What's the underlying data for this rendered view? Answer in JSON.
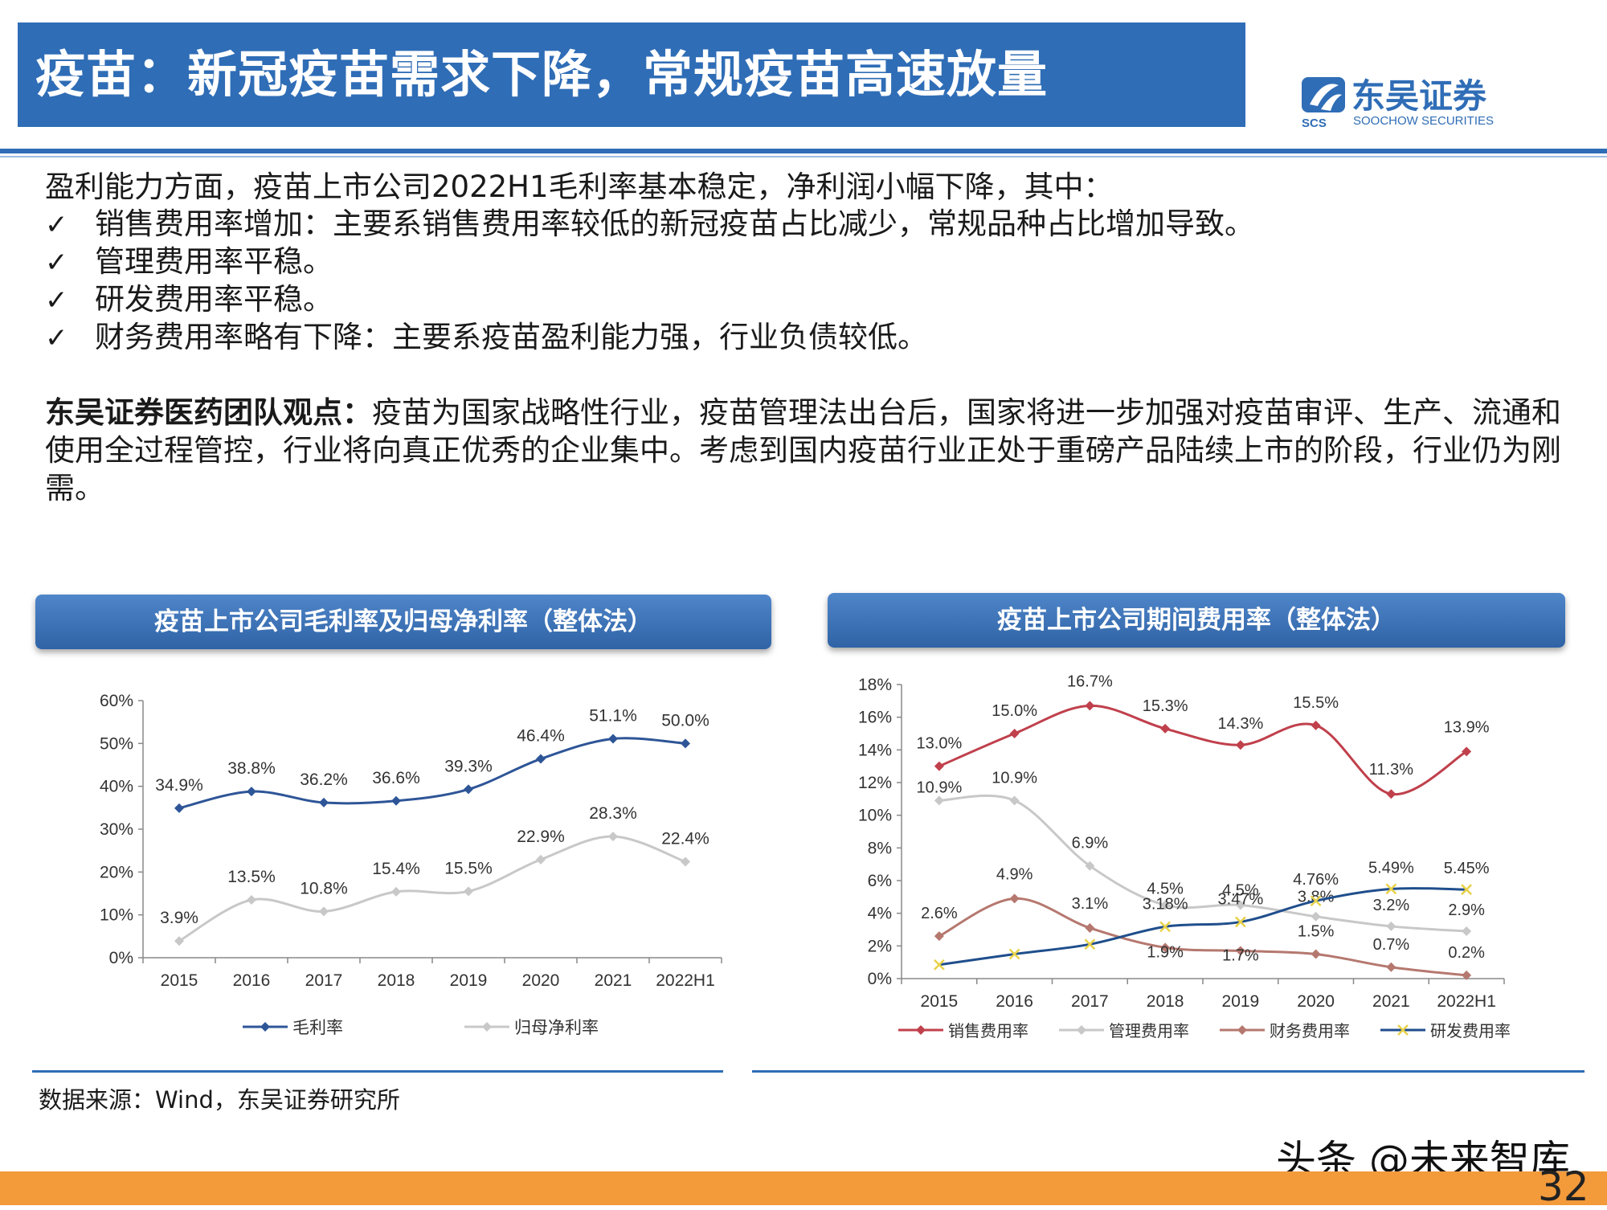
{
  "header": {
    "title": "疫苗：新冠疫苗需求下降，常规疫苗高速放量",
    "logo_cn": "东吴证券",
    "logo_en": "SOOCHOW SECURITIES",
    "logo_mark": "SCS"
  },
  "body": {
    "intro": "盈利能力方面，疫苗上市公司2022H1毛利率基本稳定，净利润小幅下降，其中：",
    "check": "✓",
    "bullets": [
      "销售费用率增加：主要系销售费用率较低的新冠疫苗占比减少，常规品种占比增加导致。",
      "管理费用率平稳。",
      "研发费用率平稳。",
      "财务费用率略有下降：主要系疫苗盈利能力强，行业负债较低。"
    ],
    "view_label": "东吴证券医药团队观点：",
    "view_text": "疫苗为国家战略性行业，疫苗管理法出台后，国家将进一步加强对疫苗审评、生产、流通和使用全过程管控，行业将向真正优秀的企业集中。考虑到国内疫苗行业正处于重磅产品陆续上市的阶段，行业仍为刚需。"
  },
  "chart_data": [
    {
      "type": "line",
      "title": "疫苗上市公司毛利率及归母净利率（整体法）",
      "categories": [
        "2015",
        "2016",
        "2017",
        "2018",
        "2019",
        "2020",
        "2021",
        "2022H1"
      ],
      "ylim": [
        0,
        60
      ],
      "yticks": [
        "0%",
        "10%",
        "20%",
        "30%",
        "40%",
        "50%",
        "60%"
      ],
      "legend_position": "bottom",
      "series": [
        {
          "name": "毛利率",
          "color": "#2e5597",
          "marker": "diamond",
          "values": [
            34.9,
            38.8,
            36.2,
            36.6,
            39.3,
            46.4,
            51.1,
            50.0
          ],
          "labels": [
            "34.9%",
            "38.8%",
            "36.2%",
            "36.6%",
            "39.3%",
            "46.4%",
            "51.1%",
            "50.0%"
          ]
        },
        {
          "name": "归母净利率",
          "color": "#c8c8c8",
          "marker": "diamond",
          "values": [
            3.9,
            13.5,
            10.8,
            15.4,
            15.5,
            22.9,
            28.3,
            22.4
          ],
          "labels": [
            "3.9%",
            "13.5%",
            "10.8%",
            "15.4%",
            "15.5%",
            "22.9%",
            "28.3%",
            "22.4%"
          ]
        }
      ]
    },
    {
      "type": "line",
      "title": "疫苗上市公司期间费用率（整体法）",
      "categories": [
        "2015",
        "2016",
        "2017",
        "2018",
        "2019",
        "2020",
        "2021",
        "2022H1"
      ],
      "ylim": [
        0,
        18
      ],
      "yticks": [
        "0%",
        "2%",
        "4%",
        "6%",
        "8%",
        "10%",
        "12%",
        "14%",
        "16%",
        "18%"
      ],
      "legend_position": "bottom",
      "series": [
        {
          "name": "销售费用率",
          "color": "#c0404c",
          "marker": "diamond",
          "values": [
            13.0,
            15.0,
            16.7,
            15.3,
            14.3,
            15.5,
            11.3,
            13.9
          ],
          "labels": [
            "13.0%",
            "15.0%",
            "16.7%",
            "15.3%",
            "14.3%",
            "15.5%",
            "11.3%",
            "13.9%"
          ]
        },
        {
          "name": "管理费用率",
          "color": "#c8c8c8",
          "marker": "diamond",
          "values": [
            10.9,
            10.9,
            6.9,
            4.5,
            4.5,
            3.8,
            3.2,
            2.9
          ],
          "labels": [
            "10.9%",
            "10.9%",
            "6.9%",
            "4.5%",
            "4.5%",
            "3.8%",
            "3.2%",
            "2.9%"
          ]
        },
        {
          "name": "财务费用率",
          "color": "#b5786f",
          "marker": "diamond",
          "values": [
            2.6,
            4.9,
            3.1,
            1.9,
            1.7,
            1.5,
            0.7,
            0.2
          ],
          "labels": [
            "2.6%",
            "4.9%",
            "3.1%",
            "1.9%",
            "1.7%",
            "1.5%",
            "0.7%",
            "0.2%"
          ]
        },
        {
          "name": "研发费用率",
          "color": "#1f4e8c",
          "marker": "x",
          "values": [
            0.85,
            1.5,
            2.1,
            3.18,
            3.47,
            4.76,
            5.49,
            5.45
          ],
          "labels": [
            "",
            "",
            "",
            "3.18%",
            "3.47%",
            "4.76%",
            "5.49%",
            "5.45%"
          ]
        }
      ]
    }
  ],
  "footer": {
    "source": "数据来源：Wind，东吴证券研究所",
    "watermark": "头条 @未来智库",
    "page": "32"
  }
}
